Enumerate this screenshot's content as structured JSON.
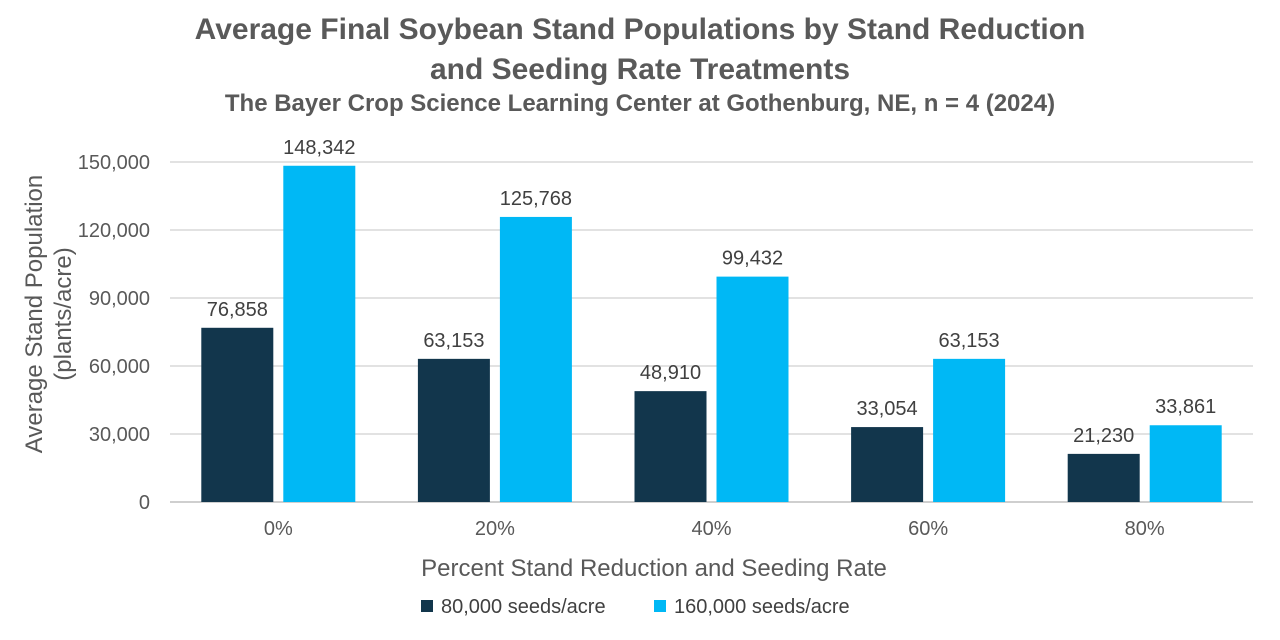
{
  "chart_data": {
    "type": "bar",
    "title_line1": "Average Final Soybean Stand Populations by Stand Reduction",
    "title_line2": "and Seeding Rate Treatments",
    "subtitle": "The Bayer Crop Science Learning Center at Gothenburg, NE, n = 4 (2024)",
    "xlabel": "Percent Stand Reduction and Seeding Rate",
    "ylabel_line1": "Average Stand Population",
    "ylabel_line2": "(plants/acre)",
    "categories": [
      "0%",
      "20%",
      "40%",
      "60%",
      "80%"
    ],
    "series": [
      {
        "name": "80,000 seeds/acre",
        "color": "#12364c",
        "values": [
          76858,
          63153,
          48910,
          33054,
          21230
        ],
        "labels": [
          "76,858",
          "63,153",
          "48,910",
          "33,054",
          "21,230"
        ]
      },
      {
        "name": "160,000 seeds/acre",
        "color": "#00b8f5",
        "values": [
          148342,
          125768,
          99432,
          63153,
          33861
        ],
        "labels": [
          "148,342",
          "125,768",
          "99,432",
          "63,153",
          "33,861"
        ]
      }
    ],
    "yticks": [
      0,
      30000,
      60000,
      90000,
      120000,
      150000
    ],
    "ytick_labels": [
      "0",
      "30,000",
      "60,000",
      "90,000",
      "120,000",
      "150,000"
    ],
    "ylim": [
      0,
      150000
    ],
    "grid": true,
    "legend_position": "bottom"
  }
}
